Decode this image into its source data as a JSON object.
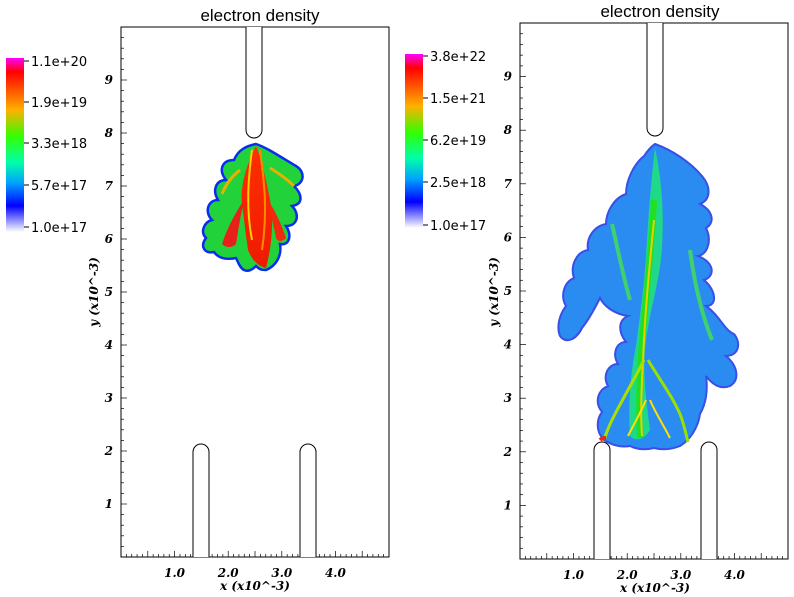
{
  "chart_data": [
    {
      "type": "heatmap",
      "title": "electron density",
      "xlabel": "x (x10^-3)",
      "ylabel": "y (x10^-3)",
      "xlim": [
        0,
        5
      ],
      "ylim": [
        0,
        10
      ],
      "x_ticks": [
        "1.0",
        "2.0",
        "3.0",
        "4.0"
      ],
      "y_ticks": [
        "1",
        "2",
        "3",
        "4",
        "5",
        "6",
        "7",
        "8",
        "9"
      ],
      "colorbar": {
        "labels": [
          "1.1e+20",
          "1.9e+19",
          "3.3e+18",
          "5.7e+17",
          "1.0e+17"
        ],
        "scale": "log",
        "colors": [
          "#ff00ff",
          "#ff0000",
          "#ffff00",
          "#00ff00",
          "#00ffff",
          "#0000ff",
          "#ffffff"
        ]
      },
      "grid": false
    },
    {
      "type": "heatmap",
      "title": "electron density",
      "xlabel": "x (x10^-3)",
      "ylabel": "y (x10^-3)",
      "xlim": [
        0,
        5
      ],
      "ylim": [
        0,
        10
      ],
      "x_ticks": [
        "1.0",
        "2.0",
        "3.0",
        "4.0"
      ],
      "y_ticks": [
        "1",
        "2",
        "3",
        "4",
        "5",
        "6",
        "7",
        "8",
        "9"
      ],
      "colorbar": {
        "labels": [
          "3.8e+22",
          "1.5e+21",
          "6.2e+19",
          "2.5e+18",
          "1.0e+17"
        ],
        "scale": "log",
        "colors": [
          "#ff00ff",
          "#ff0000",
          "#ffff00",
          "#00ff00",
          "#00ffff",
          "#0000ff",
          "#ffffff"
        ]
      },
      "grid": false
    }
  ]
}
